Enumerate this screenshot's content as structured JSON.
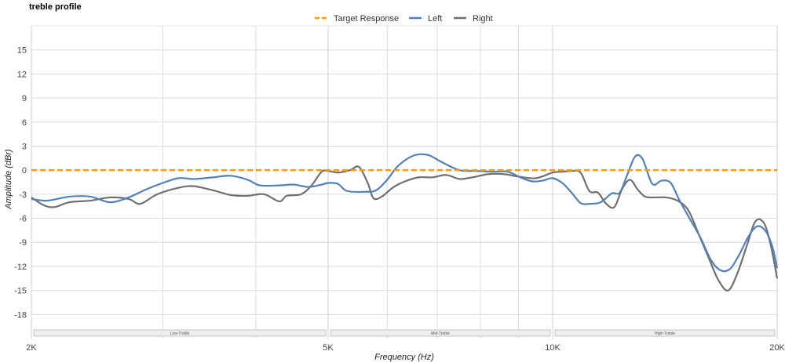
{
  "chart_data": {
    "type": "line",
    "title": "treble profile",
    "xlabel": "Frequency (Hz)",
    "ylabel": "Amplitude (dBr)",
    "x_scale": "log",
    "xlim": [
      2000,
      20000
    ],
    "ylim": [
      -21,
      18
    ],
    "x_ticks": [
      {
        "value": 2000,
        "label": "2K"
      },
      {
        "value": 5000,
        "label": "5K"
      },
      {
        "value": 10000,
        "label": "10K"
      },
      {
        "value": 20000,
        "label": "20K"
      }
    ],
    "x_minor_ticks": [
      3000,
      4000,
      6000,
      7000,
      8000,
      9000
    ],
    "y_ticks": [
      15,
      12,
      9,
      6,
      3,
      0,
      -3,
      -6,
      -9,
      -12,
      -15,
      -18
    ],
    "grid": true,
    "legend_position": "top-center",
    "bands": [
      {
        "label": "Low-Treble",
        "from": 2000,
        "to": 5000
      },
      {
        "label": "Mid-Treble",
        "from": 5000,
        "to": 10000
      },
      {
        "label": "High-Treble",
        "from": 10000,
        "to": 20000
      }
    ],
    "series": [
      {
        "name": "Target Response",
        "color": "#ff9900",
        "dashed": true,
        "points": [
          [
            2000,
            0
          ],
          [
            20000,
            0
          ]
        ]
      },
      {
        "name": "Left",
        "color": "#4f81bd",
        "dashed": false,
        "points": [
          [
            2000,
            -3.6
          ],
          [
            2100,
            -3.8
          ],
          [
            2250,
            -3.3
          ],
          [
            2400,
            -3.3
          ],
          [
            2550,
            -4.0
          ],
          [
            2700,
            -3.4
          ],
          [
            2850,
            -2.4
          ],
          [
            3000,
            -1.6
          ],
          [
            3150,
            -1.0
          ],
          [
            3300,
            -1.1
          ],
          [
            3500,
            -0.9
          ],
          [
            3700,
            -0.7
          ],
          [
            3900,
            -1.2
          ],
          [
            4050,
            -1.9
          ],
          [
            4300,
            -1.9
          ],
          [
            4500,
            -1.8
          ],
          [
            4700,
            -2.1
          ],
          [
            4900,
            -1.8
          ],
          [
            5000,
            -1.6
          ],
          [
            5150,
            -1.7
          ],
          [
            5300,
            -2.6
          ],
          [
            5600,
            -2.7
          ],
          [
            5800,
            -2.5
          ],
          [
            6000,
            -1.2
          ],
          [
            6200,
            0.5
          ],
          [
            6500,
            1.8
          ],
          [
            6800,
            1.9
          ],
          [
            7100,
            1.0
          ],
          [
            7500,
            0.0
          ],
          [
            7900,
            -0.1
          ],
          [
            8300,
            -0.2
          ],
          [
            8700,
            -0.2
          ],
          [
            9100,
            -1.0
          ],
          [
            9400,
            -1.4
          ],
          [
            9700,
            -1.3
          ],
          [
            10000,
            -1.0
          ],
          [
            10300,
            -1.6
          ],
          [
            10600,
            -2.8
          ],
          [
            10900,
            -4.1
          ],
          [
            11200,
            -4.2
          ],
          [
            11600,
            -4.0
          ],
          [
            12000,
            -2.9
          ],
          [
            12300,
            -2.8
          ],
          [
            12600,
            -0.5
          ],
          [
            12900,
            1.7
          ],
          [
            13200,
            1.4
          ],
          [
            13600,
            -1.7
          ],
          [
            14000,
            -1.3
          ],
          [
            14400,
            -1.6
          ],
          [
            14800,
            -3.8
          ],
          [
            15300,
            -6.2
          ],
          [
            15800,
            -8.5
          ],
          [
            16300,
            -11.2
          ],
          [
            16800,
            -12.5
          ],
          [
            17300,
            -12.3
          ],
          [
            17800,
            -10.5
          ],
          [
            18300,
            -8.3
          ],
          [
            18800,
            -7.0
          ],
          [
            19300,
            -7.6
          ],
          [
            19700,
            -9.5
          ],
          [
            20000,
            -12.2
          ]
        ]
      },
      {
        "name": "Right",
        "color": "#707070",
        "dashed": false,
        "points": [
          [
            2000,
            -3.4
          ],
          [
            2080,
            -4.4
          ],
          [
            2150,
            -4.6
          ],
          [
            2250,
            -4.0
          ],
          [
            2400,
            -3.8
          ],
          [
            2550,
            -3.4
          ],
          [
            2700,
            -3.6
          ],
          [
            2800,
            -4.2
          ],
          [
            2950,
            -3.0
          ],
          [
            3150,
            -2.2
          ],
          [
            3300,
            -2.0
          ],
          [
            3500,
            -2.5
          ],
          [
            3700,
            -3.1
          ],
          [
            3900,
            -3.2
          ],
          [
            4100,
            -3.0
          ],
          [
            4300,
            -3.9
          ],
          [
            4400,
            -3.2
          ],
          [
            4600,
            -3.0
          ],
          [
            4750,
            -1.9
          ],
          [
            4900,
            -0.2
          ],
          [
            5000,
            -0.1
          ],
          [
            5150,
            -0.3
          ],
          [
            5350,
            0.0
          ],
          [
            5500,
            0.4
          ],
          [
            5650,
            -1.6
          ],
          [
            5750,
            -3.5
          ],
          [
            5900,
            -3.3
          ],
          [
            6100,
            -2.2
          ],
          [
            6300,
            -1.5
          ],
          [
            6600,
            -0.9
          ],
          [
            6900,
            -0.9
          ],
          [
            7200,
            -0.6
          ],
          [
            7500,
            -1.1
          ],
          [
            7800,
            -0.9
          ],
          [
            8200,
            -0.5
          ],
          [
            8600,
            -0.5
          ],
          [
            9000,
            -0.8
          ],
          [
            9500,
            -1.0
          ],
          [
            10000,
            -0.3
          ],
          [
            10300,
            -0.2
          ],
          [
            10600,
            -0.1
          ],
          [
            10900,
            -0.3
          ],
          [
            11200,
            -2.6
          ],
          [
            11500,
            -2.8
          ],
          [
            11800,
            -4.2
          ],
          [
            12100,
            -4.6
          ],
          [
            12400,
            -2.3
          ],
          [
            12700,
            -1.2
          ],
          [
            13000,
            -2.4
          ],
          [
            13300,
            -3.3
          ],
          [
            13700,
            -3.4
          ],
          [
            14200,
            -3.4
          ],
          [
            14700,
            -3.8
          ],
          [
            15200,
            -5.0
          ],
          [
            15700,
            -8.0
          ],
          [
            16200,
            -11.0
          ],
          [
            16700,
            -13.8
          ],
          [
            17200,
            -15.0
          ],
          [
            17700,
            -12.8
          ],
          [
            18200,
            -9.5
          ],
          [
            18700,
            -6.4
          ],
          [
            19200,
            -6.6
          ],
          [
            19600,
            -9.3
          ],
          [
            20000,
            -13.5
          ]
        ]
      }
    ]
  }
}
